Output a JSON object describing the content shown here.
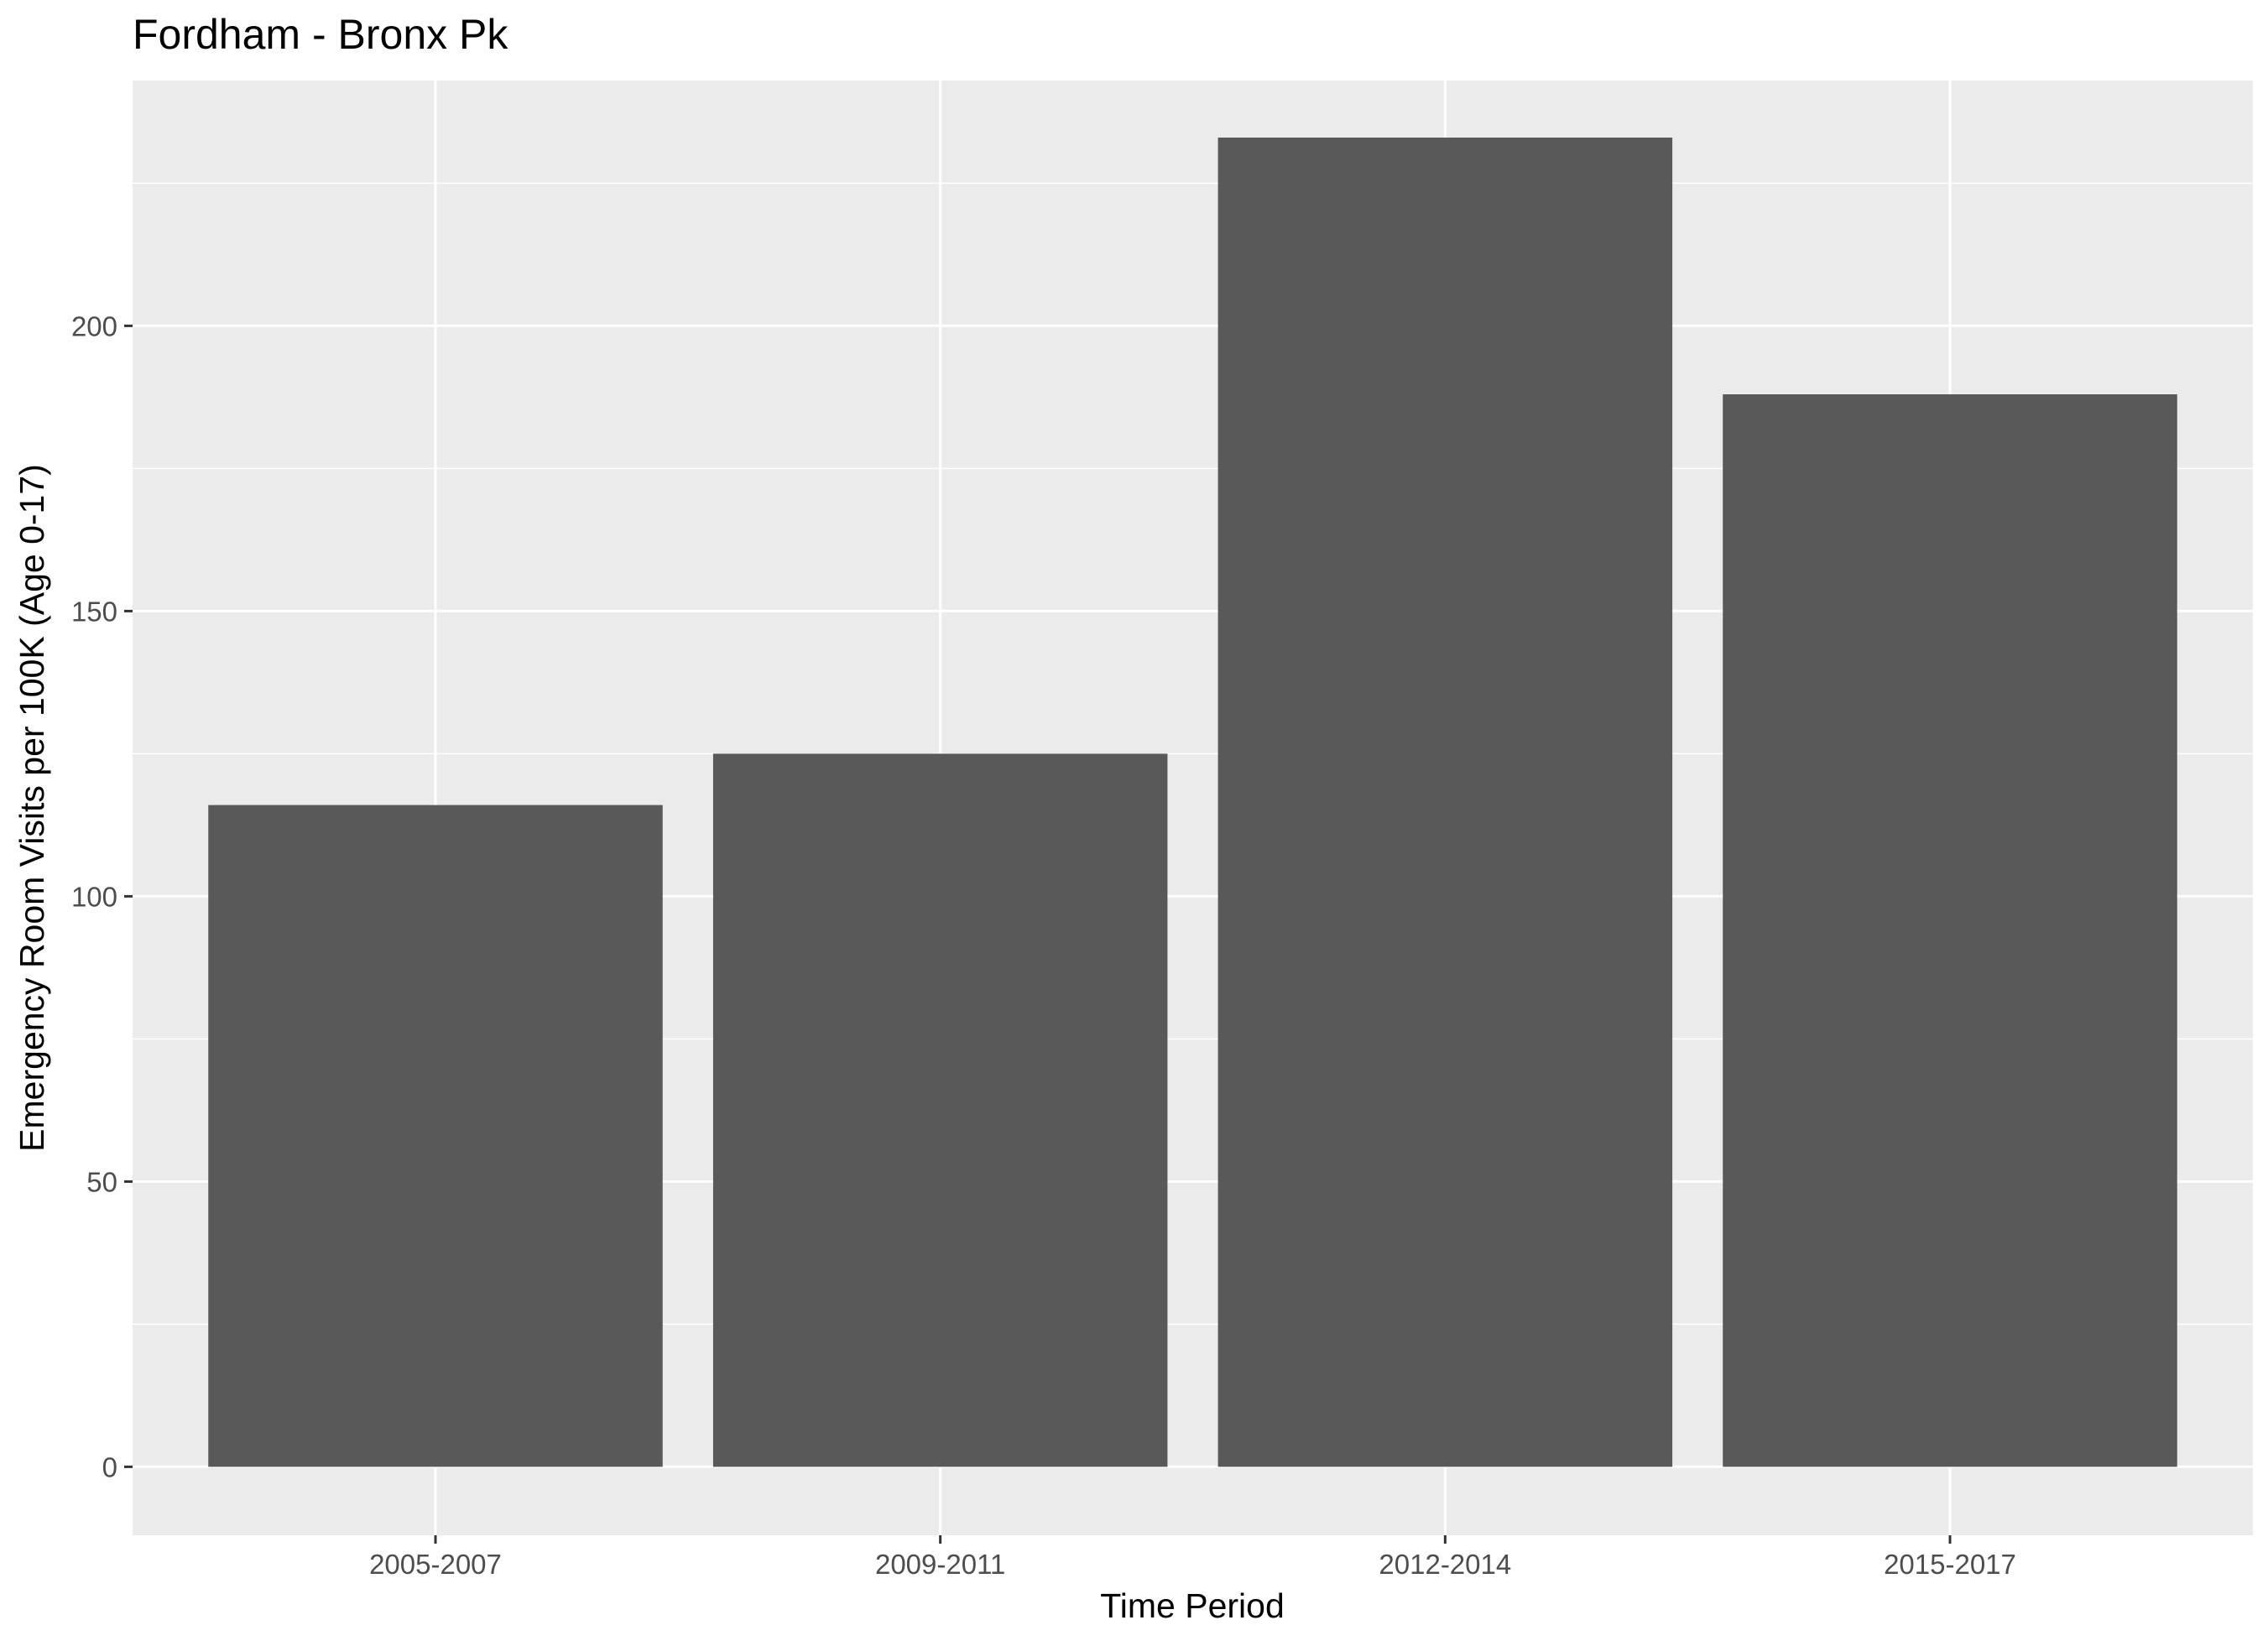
{
  "chart_data": {
    "type": "bar",
    "title": "Fordham - Bronx Pk",
    "xlabel": "Time Period",
    "ylabel": "Emergency Room Visits per 100K (Age 0-17)",
    "categories": [
      "2005-2007",
      "2009-2011",
      "2012-2014",
      "2015-2017"
    ],
    "values": [
      116,
      125,
      233,
      188
    ],
    "ylim": [
      -12,
      243
    ],
    "yticks": [
      0,
      50,
      100,
      150,
      200
    ],
    "grid": true,
    "legend": "none",
    "colors": {
      "bar": "#595959",
      "panel": "#ebebeb",
      "grid": "#ffffff",
      "tick": "#333333"
    }
  }
}
